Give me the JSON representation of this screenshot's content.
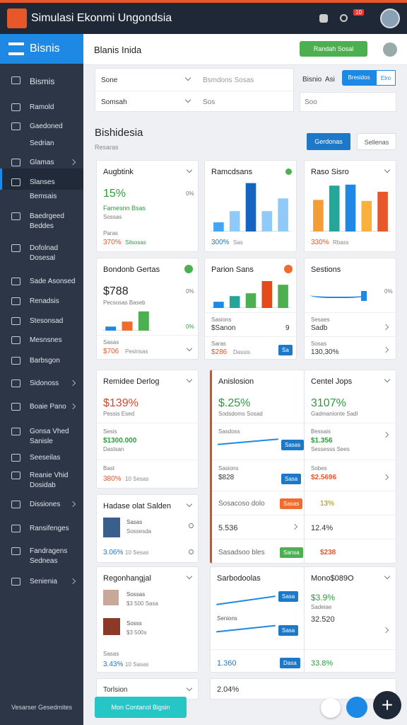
{
  "header": {
    "title": "Simulasi Ekonmi Ungondsia",
    "badge": "10"
  },
  "sidebar": {
    "title": "Bisnis",
    "items": [
      {
        "label": "Bismis"
      },
      {
        "label": "Ramold"
      },
      {
        "label": "Gaedoned"
      },
      {
        "label": "Sedrian"
      },
      {
        "label": "Glamas"
      },
      {
        "label": "Slanses"
      },
      {
        "label": "Bemsais"
      },
      {
        "label": "Baedrgeed",
        "sub": "Beddes"
      },
      {
        "label": "Dofolnad",
        "sub": "Dosesal"
      },
      {
        "label": "Sade Asonsed"
      },
      {
        "label": "Renadsis"
      },
      {
        "label": "Stesonsad"
      },
      {
        "label": "Mesnsnes"
      },
      {
        "label": "Barbsgon"
      },
      {
        "label": "Sidonoss"
      },
      {
        "label": "Boaie Pano"
      },
      {
        "label": "Gonsa Vhed",
        "sub": "Sanisle"
      },
      {
        "label": "Seeseilas"
      },
      {
        "label": "Reanie Vhid",
        "sub": "Dosidab"
      },
      {
        "label": "Dissiones"
      },
      {
        "label": "Ransifenges"
      },
      {
        "label": "Fandragens",
        "sub": "Sedneas"
      },
      {
        "label": "Senienia"
      }
    ],
    "footer": "Vesarser Gesedmites"
  },
  "topbar": {
    "title": "Blanis Inida",
    "button": "Randah Sosal"
  },
  "filters": {
    "f1": "Sone",
    "f2": "Bsmdons Sosas",
    "f3": "Bisnio",
    "f3b": "Asi",
    "f4": "Bresidos",
    "f5": "Elro",
    "f6": "Somsah",
    "f7": "Sos",
    "f8": "Soo"
  },
  "section": {
    "title": "Bishidesia",
    "subtitle": "Resaras",
    "primary": "Gerdonas",
    "secondary": "Sellenas"
  },
  "cards": [
    {
      "title": "Augbtink",
      "value": "15%",
      "pct": "0%",
      "note": "Famesnn Bsas",
      "sub": "Sossas",
      "label": "Paras",
      "footer": "370%",
      "footer_note": "Silsosas"
    },
    {
      "title": "Ramcdsans",
      "ylim": [
        0,
        100
      ],
      "bars": [
        {
          "value": 18,
          "color": "#42a5f5"
        },
        {
          "value": 40,
          "color": "#90caf9"
        },
        {
          "value": 95,
          "color": "#1565c0"
        },
        {
          "value": 40,
          "color": "#90caf9"
        },
        {
          "value": 65,
          "color": "#90caf9"
        }
      ],
      "footer": "300%",
      "footer_note": "Sas"
    },
    {
      "title": "Raso Sisro",
      "ylim": [
        0,
        100
      ],
      "bars": [
        {
          "value": 62,
          "color": "#f39c3a"
        },
        {
          "value": 90,
          "color": "#26a69a"
        },
        {
          "value": 92,
          "color": "#1e88e5"
        },
        {
          "value": 60,
          "color": "#f7b13c"
        },
        {
          "value": 78,
          "color": "#e8572a"
        }
      ],
      "footer": "330%",
      "footer_note": "Rbass"
    },
    {
      "title": "Bondonb Gertas",
      "value": "$788",
      "pct": "0%",
      "note": "Pecsosas Baseb",
      "ylim": [
        0,
        100
      ],
      "bars": [
        {
          "value": 18,
          "color": "#1e88e5"
        },
        {
          "value": 40,
          "color": "#ef6c2e"
        },
        {
          "value": 85,
          "color": "#4caf50"
        }
      ],
      "pct2": "0%",
      "label": "Sasas",
      "footer": "$706",
      "footer_note": "Pesinsas"
    },
    {
      "title": "Parion Sans",
      "ylim": [
        0,
        100
      ],
      "bars": [
        {
          "value": 22,
          "color": "#1e88e5"
        },
        {
          "value": 42,
          "color": "#26a69a"
        },
        {
          "value": 52,
          "color": "#4caf50"
        },
        {
          "value": 95,
          "color": "#e64a19"
        },
        {
          "value": 82,
          "color": "#4caf50"
        }
      ],
      "label": "Sasions",
      "value": "$Sanon",
      "num": "9",
      "label2": "Saras",
      "footer": "$286",
      "footer_note": "Dassis",
      "button": "Sa"
    },
    {
      "title": "Sestions",
      "pct": "0%",
      "label": "Sesaes",
      "value": "Sadb",
      "label2": "Sosas",
      "footer": "130,30%"
    },
    {
      "title": "Remidee Derlog",
      "value": "$139%",
      "note": "Pessis Esed",
      "label": "Sesis",
      "value2": "$1300.000",
      "label2": "Dastsan",
      "label3": "Bast",
      "footer": "380%",
      "footer_note": "10 Sesas"
    },
    {
      "title": "Anislosion",
      "value": "$.25%",
      "note": "Sodsdoms Sosad",
      "r1": "Sasdoss",
      "b1": "Sasas",
      "r2": "Sasions",
      "v2": "$828",
      "b2": "Sasa",
      "r3": "Sosacoso dolo",
      "b3": "Sasas",
      "r4": "5.536",
      "r5": "Sasadsoo bles",
      "b5": "Sansa"
    },
    {
      "title": "Centel Jops",
      "value": "3107%",
      "note": "Gadmanionte Sadl",
      "r1": "Bessais",
      "v1": "$1.356",
      "s1": "Sessesss Sees",
      "r2": "Sobes",
      "v2": "$2.5696",
      "r3": "13%",
      "r4": "12.4%",
      "r5": "$238"
    },
    {
      "title": "Hadase olat Salden",
      "label": "Sasas",
      "sub": "Sossesda",
      "footer": "3.06%",
      "footer_note": "10 Sesas"
    },
    {
      "title": "Regonhangjal",
      "l1": "Sossas",
      "s1": "$3 500 Sasa",
      "l2": "Sosss",
      "s2": "$3 500s",
      "label": "Sasas",
      "footer": "3.43%",
      "footer_note": "10 Sasas"
    },
    {
      "title": "Sarbodoolas",
      "label": "Senions",
      "value": "1.360",
      "b1": "Sasa",
      "b2": "Sasa",
      "b3": "Dasa"
    },
    {
      "title": "Mono$089O",
      "value": "$3.9%",
      "label": "Sadeiae",
      "value2": "32.520",
      "value3": "33.8%"
    }
  ],
  "bottom": {
    "left": "Torlsion",
    "mid": "2.04%",
    "cta": "Mon Contanol Bigsin"
  }
}
